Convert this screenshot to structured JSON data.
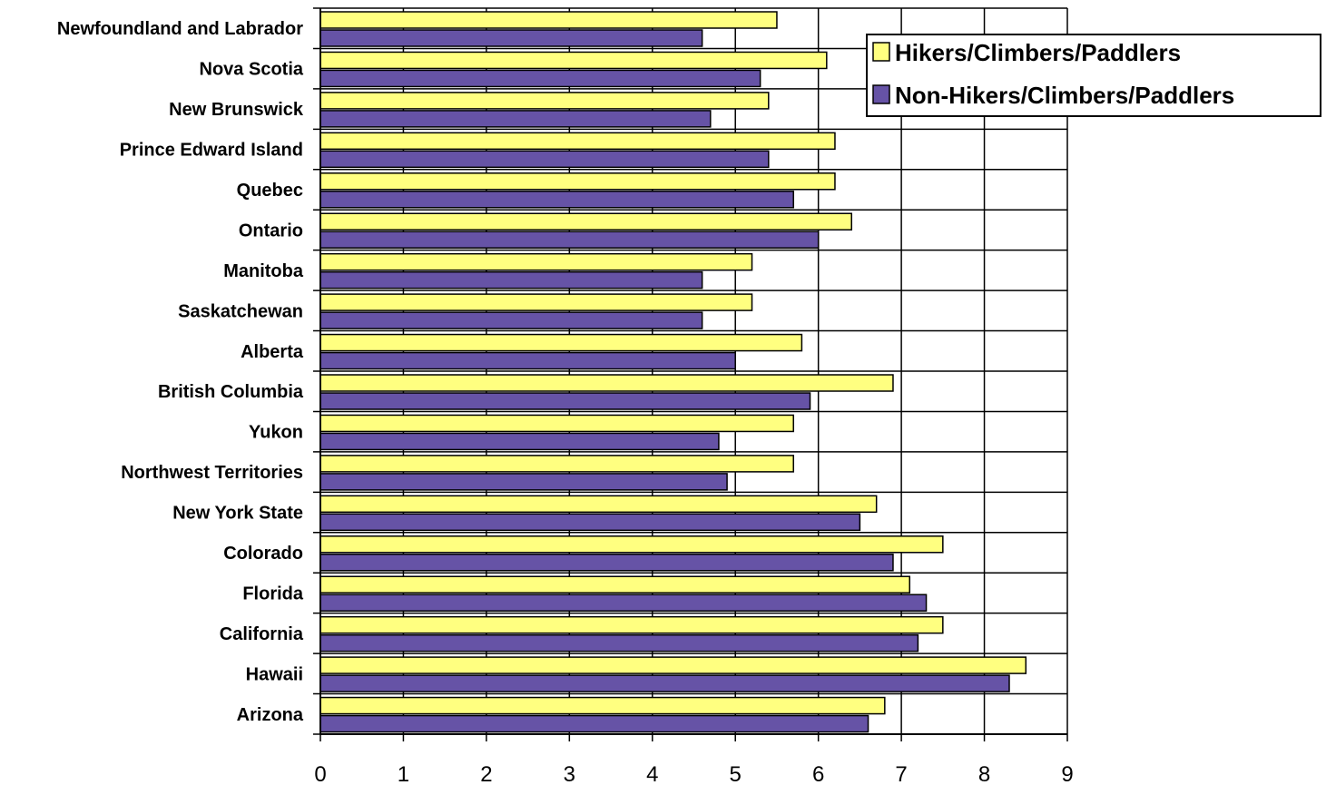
{
  "chart_data": {
    "type": "bar",
    "orientation": "horizontal",
    "categories": [
      "Newfoundland and Labrador",
      "Nova Scotia",
      "New Brunswick",
      "Prince Edward Island",
      "Quebec",
      "Ontario",
      "Manitoba",
      "Saskatchewan",
      "Alberta",
      "British Columbia",
      "Yukon",
      "Northwest Territories",
      "New York State",
      "Colorado",
      "Florida",
      "California",
      "Hawaii",
      "Arizona"
    ],
    "series": [
      {
        "name": "Hikers/Climbers/Paddlers",
        "color": "#FFFF80",
        "values": [
          5.5,
          6.1,
          5.4,
          6.2,
          6.2,
          6.4,
          5.2,
          5.2,
          5.8,
          6.9,
          5.7,
          5.7,
          6.7,
          7.5,
          7.1,
          7.5,
          8.5,
          6.8
        ]
      },
      {
        "name": "Non-Hikers/Climbers/Paddlers",
        "color": "#6653A6",
        "values": [
          4.6,
          5.3,
          4.7,
          5.4,
          5.7,
          6.0,
          4.6,
          4.6,
          5.0,
          5.9,
          4.8,
          4.9,
          6.5,
          6.9,
          7.3,
          7.2,
          8.3,
          6.6
        ]
      }
    ],
    "x_ticks": [
      "0",
      "1",
      "2",
      "3",
      "4",
      "5",
      "6",
      "7",
      "8",
      "9"
    ],
    "xlim": [
      0,
      9
    ],
    "grid": true,
    "legend_position": "top-right"
  }
}
